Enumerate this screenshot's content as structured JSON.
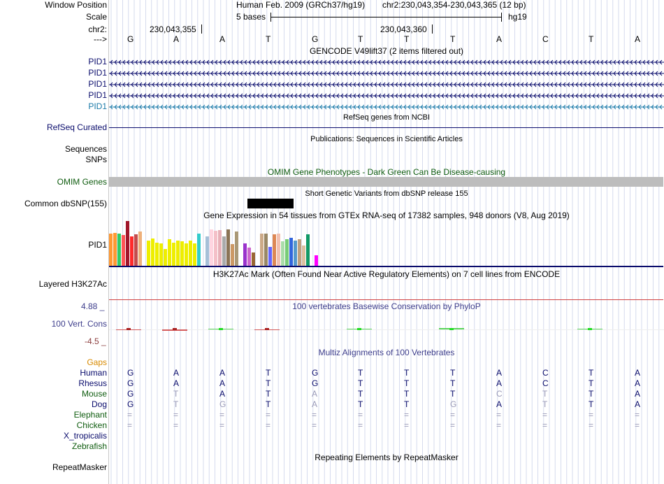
{
  "colors": {
    "gene_blue": "#0a0c6c",
    "gene_light_blue": "#1879a8",
    "omim_green": "#0f5c0f",
    "omim_bar": "#bdbdbd",
    "phylop_blue": "#3e3e8c",
    "phylop_red": "#8c3e3e",
    "gaps_orange": "#d88a00",
    "snp_black": "#000000",
    "h3k27_red": "#d04040",
    "guide": "#d6dbee"
  },
  "position": {
    "window_label": "Window Position",
    "assembly": "Human Feb. 2009 (GRCh37/hg19)",
    "coords": "chr2:230,043,354-230,043,365 (12 bp)",
    "scale_label": "Scale",
    "scale_bar_text": "5 bases",
    "scale_db": "hg19",
    "chrom_label": "chr2:",
    "tick1": "230,043,355",
    "tick2": "230,043,360",
    "strand_label": "--->",
    "bases": [
      "G",
      "A",
      "A",
      "T",
      "G",
      "T",
      "T",
      "T",
      "A",
      "C",
      "T",
      "A"
    ]
  },
  "gencode": {
    "title": "GENCODE V49lift37 (2 items filtered out)",
    "items": [
      "PID1",
      "PID1",
      "PID1",
      "PID1",
      "PID1"
    ]
  },
  "refseq": {
    "title": "RefSeq genes from NCBI",
    "label": "RefSeq Curated"
  },
  "publications": {
    "title": "Publications: Sequences in Scientific Articles",
    "label1": "Sequences",
    "label2": "SNPs"
  },
  "omim": {
    "title": "OMIM Gene Phenotypes - Dark Green Can Be Disease-causing",
    "label": "OMIM Genes"
  },
  "dbsnp": {
    "title": "Short Genetic Variants from dbSNP release 155",
    "label": "Common dbSNP(155)"
  },
  "gtex": {
    "title": "Gene Expression in 54 tissues from GTEx RNA-seq of 17382 samples, 948 donors (V8, Aug 2019)",
    "label": "PID1",
    "tissues": [
      {
        "c": "#ff9933",
        "v": 0.72
      },
      {
        "c": "#ff9933",
        "v": 0.74
      },
      {
        "c": "#33cc66",
        "v": 0.72
      },
      {
        "c": "#ff5555",
        "v": 0.68
      },
      {
        "c": "#a0162b",
        "v": 1.0
      },
      {
        "c": "#ff2a2a",
        "v": 0.66
      },
      {
        "c": "#c44c4c",
        "v": 0.7
      },
      {
        "c": "#eeb07a",
        "v": 0.77
      },
      {
        "c": "#ffffff",
        "v": 0.0
      },
      {
        "c": "#eeee00",
        "v": 0.56
      },
      {
        "c": "#eeee00",
        "v": 0.61
      },
      {
        "c": "#eeee00",
        "v": 0.52
      },
      {
        "c": "#eeee00",
        "v": 0.5
      },
      {
        "c": "#eeee00",
        "v": 0.38
      },
      {
        "c": "#eeee00",
        "v": 0.6
      },
      {
        "c": "#eeee00",
        "v": 0.52
      },
      {
        "c": "#eeee00",
        "v": 0.56
      },
      {
        "c": "#eeee00",
        "v": 0.54
      },
      {
        "c": "#eeee00",
        "v": 0.5
      },
      {
        "c": "#eeee00",
        "v": 0.56
      },
      {
        "c": "#eeee00",
        "v": 0.5
      },
      {
        "c": "#33cccc",
        "v": 0.72
      },
      {
        "c": "#ffffff",
        "v": 0.0
      },
      {
        "c": "#a6c0d8",
        "v": 0.66
      },
      {
        "c": "#ffd5e0",
        "v": 0.82
      },
      {
        "c": "#f4c0c8",
        "v": 0.78
      },
      {
        "c": "#e8b0b8",
        "v": 0.8
      },
      {
        "c": "#aaaaaa",
        "v": 0.66
      },
      {
        "c": "#8b7355",
        "v": 0.82
      },
      {
        "c": "#cc9966",
        "v": 0.48
      },
      {
        "c": "#aa9977",
        "v": 0.77
      },
      {
        "c": "#ffffff",
        "v": 0.0
      },
      {
        "c": "#9933cc",
        "v": 0.5
      },
      {
        "c": "#cc66cc",
        "v": 0.4
      },
      {
        "c": "#996633",
        "v": 0.3
      },
      {
        "c": "#ffffff",
        "v": 0.0
      },
      {
        "c": "#ccaa88",
        "v": 0.72
      },
      {
        "c": "#998866",
        "v": 0.72
      },
      {
        "c": "#6666ff",
        "v": 0.42
      },
      {
        "c": "#dd8855",
        "v": 0.7
      },
      {
        "c": "#f2c0b0",
        "v": 0.72
      },
      {
        "c": "#aaddaa",
        "v": 0.54
      },
      {
        "c": "#77cc77",
        "v": 0.6
      },
      {
        "c": "#3366dd",
        "v": 0.62
      },
      {
        "c": "#5599cc",
        "v": 0.56
      },
      {
        "c": "#c0a080",
        "v": 0.6
      },
      {
        "c": "#dcc0a0",
        "v": 0.46
      },
      {
        "c": "#119966",
        "v": 0.71
      },
      {
        "c": "#ffffff",
        "v": 0.0
      },
      {
        "c": "#ff00ff",
        "v": 0.24
      }
    ]
  },
  "h3k27ac": {
    "title": "H3K27Ac Mark (Often Found Near Active Regulatory Elements) on 7 cell lines from ENCODE",
    "label": "Layered H3K27Ac"
  },
  "phylop": {
    "title": "100 vertebrates Basewise Conservation by PhyloP",
    "label": "100 Vert. Cons",
    "max_label": "4.88 _",
    "min_label": "-4.5 _",
    "scores": [
      -0.3,
      -0.45,
      0.35,
      -0.15,
      0.0,
      0.15,
      0.0,
      0.55,
      0.0,
      0.0,
      0.2,
      0.0
    ]
  },
  "multiz": {
    "title": "Multiz Alignments of 100 Vertebrates",
    "gaps_label": "Gaps",
    "species": [
      {
        "name": "Human",
        "bases": [
          "G",
          "A",
          "A",
          "T",
          "G",
          "T",
          "T",
          "T",
          "A",
          "C",
          "T",
          "A"
        ],
        "dim": [
          0,
          0,
          0,
          0,
          0,
          0,
          0,
          0,
          0,
          0,
          0,
          0
        ]
      },
      {
        "name": "Rhesus",
        "bases": [
          "G",
          "A",
          "A",
          "T",
          "G",
          "T",
          "T",
          "T",
          "A",
          "C",
          "T",
          "A"
        ],
        "dim": [
          0,
          0,
          0,
          0,
          0,
          0,
          0,
          0,
          0,
          0,
          0,
          0
        ]
      },
      {
        "name": "Mouse",
        "bases": [
          "G",
          "T",
          "A",
          "T",
          "A",
          "T",
          "T",
          "T",
          "C",
          "T",
          "T",
          "A"
        ],
        "dim": [
          0,
          1,
          0,
          0,
          1,
          0,
          0,
          0,
          1,
          1,
          0,
          0
        ]
      },
      {
        "name": "Dog",
        "bases": [
          "G",
          "T",
          "G",
          "T",
          "A",
          "T",
          "T",
          "G",
          "A",
          "T",
          "T",
          "A"
        ],
        "dim": [
          0,
          1,
          1,
          0,
          1,
          0,
          0,
          1,
          0,
          1,
          0,
          0
        ]
      },
      {
        "name": "Elephant",
        "bases": [
          "=",
          "=",
          "=",
          "=",
          "=",
          "=",
          "=",
          "=",
          "=",
          "=",
          "=",
          "="
        ],
        "dim": [
          1,
          1,
          1,
          1,
          1,
          1,
          1,
          1,
          1,
          1,
          1,
          1
        ]
      },
      {
        "name": "Chicken",
        "bases": [
          "=",
          "=",
          "=",
          "=",
          "=",
          "=",
          "=",
          "=",
          "=",
          "=",
          "=",
          "="
        ],
        "dim": [
          1,
          1,
          1,
          1,
          1,
          1,
          1,
          1,
          1,
          1,
          1,
          1
        ]
      },
      {
        "name": "X_tropicalis",
        "bases": [],
        "dim": []
      },
      {
        "name": "Zebrafish",
        "bases": [],
        "dim": []
      }
    ]
  },
  "repeatmasker": {
    "title": "Repeating Elements by RepeatMasker",
    "label": "RepeatMasker"
  }
}
